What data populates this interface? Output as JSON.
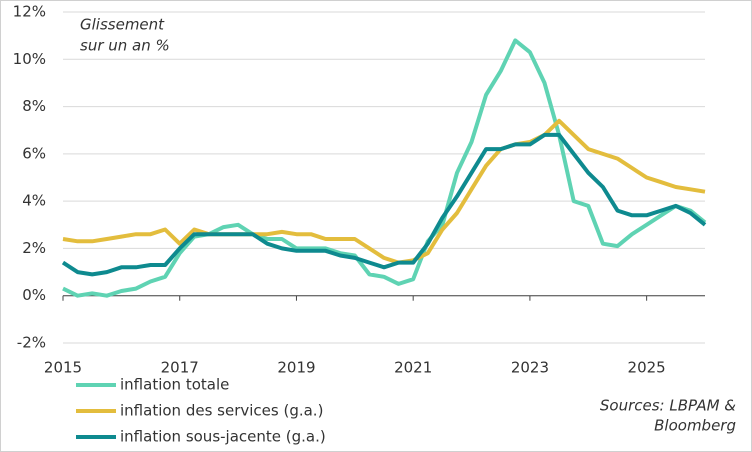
{
  "chart_data": {
    "type": "line",
    "annotation": [
      "Glissement",
      "sur un an %"
    ],
    "source": [
      "Sources: LBPAM &",
      "Bloomberg"
    ],
    "x": [
      2015,
      2015.25,
      2015.5,
      2015.75,
      2016,
      2016.25,
      2016.5,
      2016.75,
      2017,
      2017.25,
      2017.5,
      2017.75,
      2018,
      2018.25,
      2018.5,
      2018.75,
      2019,
      2019.25,
      2019.5,
      2019.75,
      2020,
      2020.25,
      2020.5,
      2020.75,
      2021,
      2021.25,
      2021.5,
      2021.75,
      2022,
      2022.25,
      2022.5,
      2022.75,
      2023,
      2023.25,
      2023.5,
      2023.75,
      2024,
      2024.25,
      2024.5,
      2024.75,
      2025,
      2025.25,
      2025.5,
      2025.75,
      2026
    ],
    "series": [
      {
        "name": "inflation totale",
        "color": "#5fd3b3",
        "values": [
          0.3,
          0.0,
          0.1,
          0.0,
          0.2,
          0.3,
          0.6,
          0.8,
          1.8,
          2.5,
          2.6,
          2.9,
          3.0,
          2.6,
          2.4,
          2.4,
          2.0,
          2.0,
          2.0,
          1.8,
          1.7,
          0.9,
          0.8,
          0.5,
          0.7,
          2.3,
          3.0,
          5.2,
          6.5,
          8.5,
          9.5,
          10.8,
          10.3,
          9.0,
          6.8,
          4.0,
          3.8,
          2.2,
          2.1,
          2.6,
          3.0,
          3.4,
          3.8,
          3.6,
          3.1
        ]
      },
      {
        "name": "inflation des services (g.a.)",
        "color": "#e3bd3d",
        "values": [
          2.4,
          2.3,
          2.3,
          2.4,
          2.5,
          2.6,
          2.6,
          2.8,
          2.2,
          2.8,
          2.6,
          2.6,
          2.6,
          2.6,
          2.6,
          2.7,
          2.6,
          2.6,
          2.4,
          2.4,
          2.4,
          2.0,
          1.6,
          1.4,
          1.5,
          1.8,
          2.8,
          3.5,
          4.5,
          5.5,
          6.2,
          6.4,
          6.5,
          6.8,
          7.4,
          6.8,
          6.2,
          6.0,
          5.8,
          5.4,
          5.0,
          4.8,
          4.6,
          4.5,
          4.4
        ]
      },
      {
        "name": "inflation sous-jacente (g.a.)",
        "color": "#0e8a8f",
        "values": [
          1.4,
          1.0,
          0.9,
          1.0,
          1.2,
          1.2,
          1.3,
          1.3,
          2.0,
          2.6,
          2.6,
          2.6,
          2.6,
          2.6,
          2.2,
          2.0,
          1.9,
          1.9,
          1.9,
          1.7,
          1.6,
          1.4,
          1.2,
          1.4,
          1.4,
          2.2,
          3.3,
          4.2,
          5.2,
          6.2,
          6.2,
          6.4,
          6.4,
          6.8,
          6.8,
          6.0,
          5.2,
          4.6,
          3.6,
          3.4,
          3.4,
          3.6,
          3.8,
          3.5,
          3.0
        ]
      }
    ],
    "xlim": [
      2015,
      2026
    ],
    "xticks": [
      2015,
      2017,
      2019,
      2021,
      2023,
      2025
    ],
    "ylim": [
      -2,
      12
    ],
    "yticks": [
      {
        "value": -2,
        "label": "-2%"
      },
      {
        "value": 0,
        "label": "0%"
      },
      {
        "value": 2,
        "label": "2%"
      },
      {
        "value": 4,
        "label": "4%"
      },
      {
        "value": 6,
        "label": "6%"
      },
      {
        "value": 8,
        "label": "8%"
      },
      {
        "value": 10,
        "label": "10%"
      },
      {
        "value": 12,
        "label": "12%"
      }
    ],
    "grid": true
  }
}
